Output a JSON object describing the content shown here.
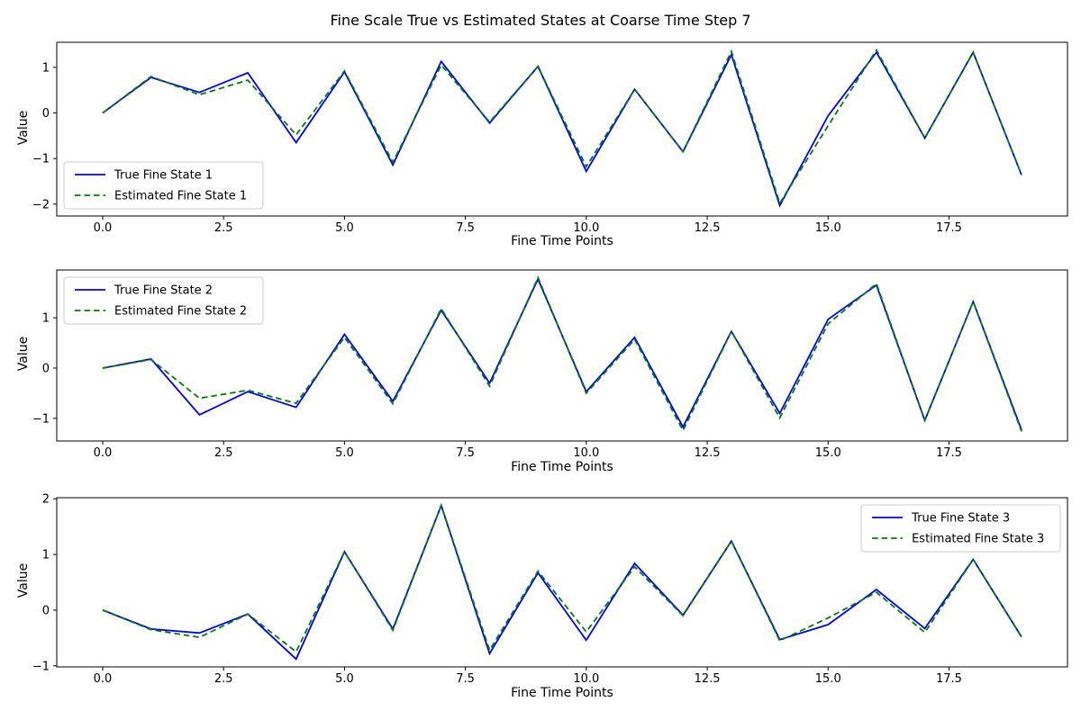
{
  "figure": {
    "title": "Fine Scale True vs Estimated States at Coarse Time Step 7",
    "background_color": "#ffffff",
    "text_color": "#000000",
    "axis_color": "#000000",
    "legend_border_color": "#cccccc"
  },
  "chart_data": [
    {
      "type": "line",
      "title": "",
      "xlabel": "Fine Time Points",
      "ylabel": "Value",
      "grid": false,
      "legend_position": "lower-left",
      "x": [
        0,
        1,
        2,
        3,
        4,
        5,
        6,
        7,
        8,
        9,
        10,
        11,
        12,
        13,
        14,
        15,
        16,
        17,
        18,
        19
      ],
      "xlim": [
        -0.95,
        19.95
      ],
      "ylim": [
        -2.26,
        1.55
      ],
      "xtick_values": [
        0,
        2.5,
        5,
        7.5,
        10,
        12.5,
        15,
        17.5
      ],
      "xtick_labels": [
        "0.0",
        "2.5",
        "5.0",
        "7.5",
        "10.0",
        "12.5",
        "15.0",
        "17.5"
      ],
      "ytick_values": [
        -2,
        -1,
        0,
        1
      ],
      "ytick_labels": [
        "−2",
        "−1",
        "0",
        "1"
      ],
      "series": [
        {
          "name": "True Fine State 1",
          "color": "#0000ff",
          "style": "solid",
          "values": [
            0.0,
            0.78,
            0.45,
            0.88,
            -0.65,
            0.9,
            -1.14,
            1.13,
            -0.22,
            1.02,
            -1.28,
            0.52,
            -0.85,
            1.28,
            -2.03,
            -0.06,
            1.33,
            -0.55,
            1.33,
            -1.36
          ]
        },
        {
          "name": "Estimated Fine State 1",
          "color": "#008000",
          "style": "dashed",
          "values": [
            0.0,
            0.8,
            0.4,
            0.72,
            -0.48,
            0.92,
            -1.08,
            1.05,
            -0.2,
            1.02,
            -1.18,
            0.52,
            -0.85,
            1.35,
            -1.98,
            -0.28,
            1.38,
            -0.55,
            1.33,
            -1.36
          ]
        }
      ]
    },
    {
      "type": "line",
      "title": "",
      "xlabel": "Fine Time Points",
      "ylabel": "Value",
      "grid": false,
      "legend_position": "upper-left",
      "x": [
        0,
        1,
        2,
        3,
        4,
        5,
        6,
        7,
        8,
        9,
        10,
        11,
        12,
        13,
        14,
        15,
        16,
        17,
        18,
        19
      ],
      "xlim": [
        -0.95,
        19.95
      ],
      "ylim": [
        -1.45,
        1.95
      ],
      "xtick_values": [
        0,
        2.5,
        5,
        7.5,
        10,
        12.5,
        15,
        17.5
      ],
      "xtick_labels": [
        "0.0",
        "2.5",
        "5.0",
        "7.5",
        "10.0",
        "12.5",
        "15.0",
        "17.5"
      ],
      "ytick_values": [
        -1,
        0,
        1
      ],
      "ytick_labels": [
        "−1",
        "0",
        "1"
      ],
      "series": [
        {
          "name": "True Fine State 2",
          "color": "#0000ff",
          "style": "solid",
          "values": [
            0.0,
            0.18,
            -0.93,
            -0.47,
            -0.78,
            0.67,
            -0.66,
            1.15,
            -0.3,
            1.77,
            -0.47,
            0.61,
            -1.17,
            0.73,
            -0.9,
            0.97,
            1.65,
            -1.04,
            1.32,
            -1.23
          ]
        },
        {
          "name": "Estimated Fine State 2",
          "color": "#008000",
          "style": "dashed",
          "values": [
            0.0,
            0.17,
            -0.6,
            -0.44,
            -0.7,
            0.61,
            -0.71,
            1.18,
            -0.36,
            1.8,
            -0.5,
            0.57,
            -1.24,
            0.73,
            -0.99,
            0.88,
            1.68,
            -1.04,
            1.32,
            -1.26
          ]
        }
      ]
    },
    {
      "type": "line",
      "title": "",
      "xlabel": "Fine Time Points",
      "ylabel": "Value",
      "grid": false,
      "legend_position": "upper-right",
      "x": [
        0,
        1,
        2,
        3,
        4,
        5,
        6,
        7,
        8,
        9,
        10,
        11,
        12,
        13,
        14,
        15,
        16,
        17,
        18,
        19
      ],
      "xlim": [
        -0.95,
        19.95
      ],
      "ylim": [
        -1.02,
        2.02
      ],
      "xtick_values": [
        0,
        2.5,
        5,
        7.5,
        10,
        12.5,
        15,
        17.5
      ],
      "xtick_labels": [
        "0.0",
        "2.5",
        "5.0",
        "7.5",
        "10.0",
        "12.5",
        "15.0",
        "17.5"
      ],
      "ytick_values": [
        -1,
        0,
        1,
        2
      ],
      "ytick_labels": [
        "−1",
        "0",
        "1",
        "2"
      ],
      "series": [
        {
          "name": "True Fine State 3",
          "color": "#0000ff",
          "style": "solid",
          "values": [
            0.0,
            -0.34,
            -0.41,
            -0.07,
            -0.88,
            1.05,
            -0.34,
            1.88,
            -0.78,
            0.67,
            -0.54,
            0.84,
            -0.09,
            1.24,
            -0.53,
            -0.26,
            0.37,
            -0.33,
            0.91,
            -0.48
          ]
        },
        {
          "name": "Estimated Fine State 3",
          "color": "#008000",
          "style": "dashed",
          "values": [
            0.0,
            -0.35,
            -0.49,
            -0.07,
            -0.75,
            1.05,
            -0.36,
            1.88,
            -0.72,
            0.7,
            -0.39,
            0.78,
            -0.1,
            1.24,
            -0.55,
            -0.14,
            0.32,
            -0.4,
            0.91,
            -0.48
          ]
        }
      ]
    }
  ]
}
